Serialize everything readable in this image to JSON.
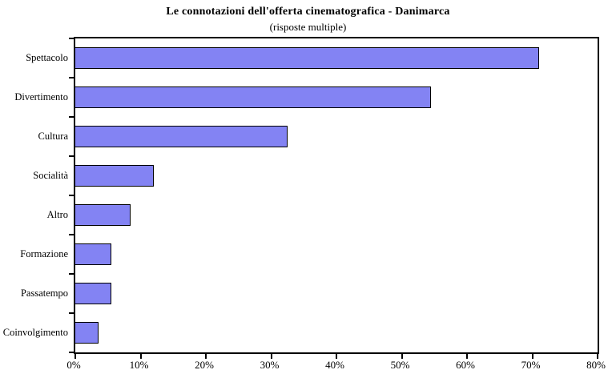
{
  "chart_data": {
    "type": "bar",
    "orientation": "horizontal",
    "title": "Le connotazioni dell'offerta cinematografica - Danimarca",
    "subtitle": "(risposte multiple)",
    "categories": [
      "Spettacolo",
      "Divertimento",
      "Cultura",
      "Socialità",
      "Altro",
      "Formazione",
      "Passatempo",
      "Coinvolgimento"
    ],
    "values": [
      71,
      54.5,
      32.5,
      12,
      8.5,
      5.5,
      5.5,
      3.5
    ],
    "unit": "%",
    "xlabel": "",
    "ylabel": "",
    "xlim": [
      0,
      80
    ],
    "x_tick_values": [
      0,
      10,
      20,
      30,
      40,
      50,
      60,
      70,
      80
    ],
    "x_ticks": [
      "0%",
      "10%",
      "20%",
      "30%",
      "40%",
      "50%",
      "60%",
      "70%",
      "80%"
    ],
    "bar_color": "#8383F3",
    "bar_border_color": "#000000",
    "axis_color": "#000000",
    "background": "#FFFFFF",
    "legend": "none",
    "grid": "off"
  }
}
